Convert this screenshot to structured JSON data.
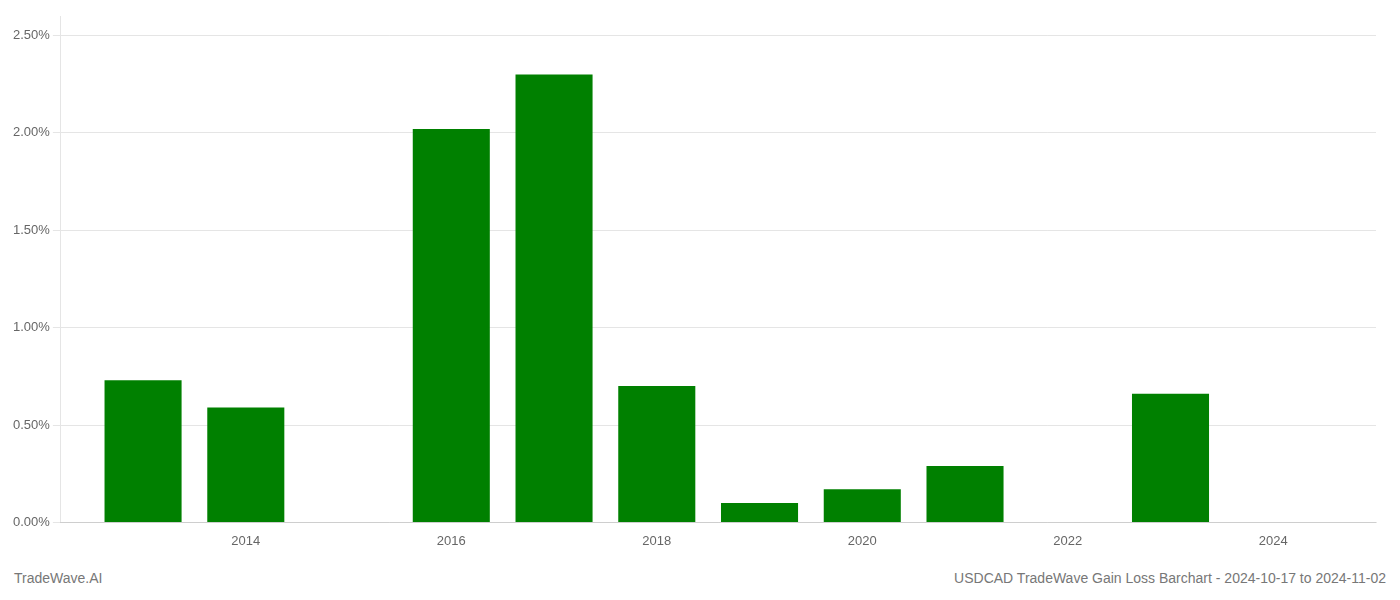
{
  "chart_data": {
    "type": "bar",
    "x": [
      2013,
      2014,
      2016,
      2017,
      2018,
      2019,
      2020,
      2021,
      2023
    ],
    "values": [
      0.0073,
      0.0059,
      0.0202,
      0.023,
      0.007,
      0.001,
      0.0017,
      0.0029,
      0.0066
    ],
    "color": "#008000",
    "xlim": [
      2012.2,
      2025.0
    ],
    "xticks": [
      2014,
      2016,
      2018,
      2020,
      2022,
      2024
    ],
    "ylim": [
      0.0,
      0.026
    ],
    "yticks": [
      {
        "value": 0.0,
        "label": "0.00%"
      },
      {
        "value": 0.005,
        "label": "0.50%"
      },
      {
        "value": 0.01,
        "label": "1.00%"
      },
      {
        "value": 0.015,
        "label": "1.50%"
      },
      {
        "value": 0.02,
        "label": "2.00%"
      },
      {
        "value": 0.025,
        "label": "2.50%"
      }
    ],
    "grid": "y",
    "annotations": [
      "TradeWave.AI",
      "USDCAD TradeWave Gain Loss Barchart - 2024-10-17 to 2024-11-02"
    ]
  }
}
